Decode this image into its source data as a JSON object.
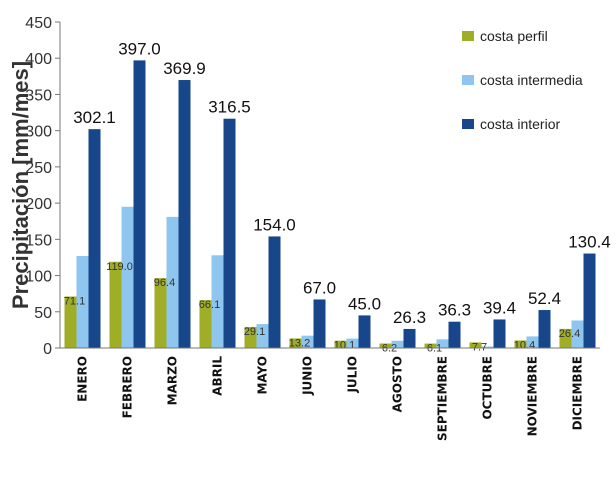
{
  "chart_data": {
    "type": "bar",
    "title": "",
    "xlabel": "",
    "ylabel": "Precipitación [mm/mes]",
    "ylim": [
      0,
      450
    ],
    "yticks": [
      0,
      50,
      100,
      150,
      200,
      250,
      300,
      350,
      400,
      450
    ],
    "grid": false,
    "legend_position": "top-right",
    "categories": [
      "ENERO",
      "FEBRERO",
      "MARZO",
      "ABRIL",
      "MAYO",
      "JUNIO",
      "JULIO",
      "AGOSTO",
      "SEPTIEMBRE",
      "OCTUBRE",
      "NOVIEMBRE",
      "DICIEMBRE"
    ],
    "series": [
      {
        "name": "costa perfil",
        "color": "#9fae26",
        "values": [
          71.1,
          119.0,
          96.4,
          66.1,
          29.1,
          13.2,
          10.1,
          6.2,
          6.1,
          7.7,
          10.4,
          26.4
        ],
        "labels": [
          "71.1",
          "119.0",
          "96.4",
          "66.1",
          "29.1",
          "13.2",
          "10.1",
          "6.2",
          "6.1",
          "7.7",
          "10.4",
          "26.4"
        ]
      },
      {
        "name": "costa intermedia",
        "color": "#8fc6ef",
        "values": [
          127,
          195,
          181,
          128,
          33,
          17,
          13,
          10,
          12,
          2,
          16,
          38
        ]
      },
      {
        "name": "costa interior",
        "color": "#17468a",
        "values": [
          302.1,
          397.0,
          369.9,
          316.5,
          154.0,
          67.0,
          45.0,
          26.3,
          36.3,
          39.4,
          52.4,
          130.4
        ],
        "labels": [
          "302.1",
          "397.0",
          "369.9",
          "316.5",
          "154.0",
          "67.0",
          "45.0",
          "26.3",
          "36.3",
          "39.4",
          "52.4",
          "130.4"
        ]
      }
    ]
  }
}
